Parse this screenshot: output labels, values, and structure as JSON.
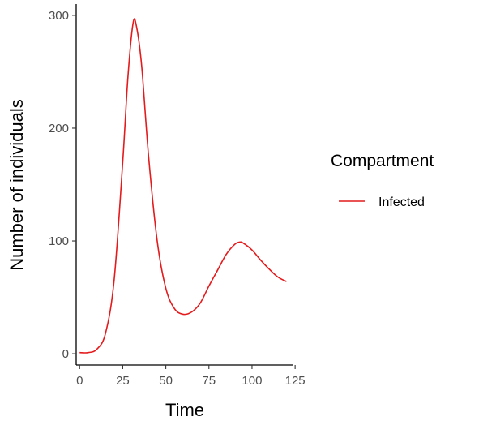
{
  "chart_data": {
    "type": "line",
    "title": "",
    "xlabel": "Time",
    "ylabel": "Number of individuals",
    "xlim": [
      -2,
      124
    ],
    "ylim": [
      -10,
      310
    ],
    "xticks": [
      0,
      25,
      50,
      75,
      100,
      125
    ],
    "yticks": [
      0,
      100,
      200,
      300
    ],
    "grid": false,
    "legend": {
      "title": "Compartment",
      "position": "right"
    },
    "series": [
      {
        "name": "Infected",
        "color": "#e41a1c",
        "x": [
          0,
          5,
          10,
          15,
          20,
          25,
          28,
          31,
          33,
          36,
          40,
          45,
          50,
          55,
          60,
          65,
          70,
          75,
          80,
          85,
          90,
          93,
          95,
          100,
          105,
          110,
          115,
          120
        ],
        "y": [
          1,
          1,
          4,
          18,
          65,
          170,
          245,
          293,
          290,
          255,
          175,
          100,
          58,
          40,
          35,
          37,
          45,
          60,
          74,
          88,
          97,
          99,
          98,
          92,
          83,
          75,
          68,
          64
        ]
      }
    ]
  }
}
